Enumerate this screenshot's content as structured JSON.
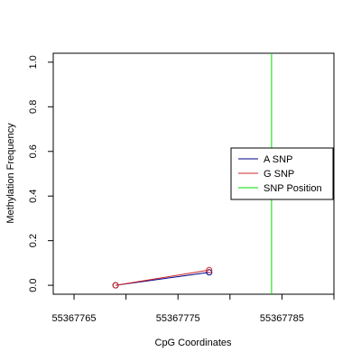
{
  "chart_data": {
    "type": "line",
    "title": "",
    "xlabel": "CpG Coordinates",
    "ylabel": "Methylation Frequency",
    "xlim": [
      55367763,
      55367790
    ],
    "ylim": [
      -0.04,
      1.04
    ],
    "x_ticks": [
      55367765,
      55367770,
      55367775,
      55367780,
      55367785,
      55367790
    ],
    "x_tick_labels": [
      "55367765",
      "",
      "55367775",
      "",
      "55367785",
      ""
    ],
    "y_ticks": [
      0.0,
      0.2,
      0.4,
      0.6,
      0.8,
      1.0
    ],
    "y_tick_labels": [
      "0.0",
      "0.2",
      "0.4",
      "0.6",
      "0.8",
      "1.0"
    ],
    "grid": false,
    "legend_position": "right",
    "series": [
      {
        "name": "A SNP",
        "color": "#00008b",
        "x": [
          55367769,
          55367778
        ],
        "y": [
          0.0,
          0.058
        ]
      },
      {
        "name": "G SNP",
        "color": "#cd2626",
        "x": [
          55367769,
          55367778
        ],
        "y": [
          0.0,
          0.068
        ]
      }
    ],
    "vline": {
      "name": "SNP Position",
      "color": "#00dd00",
      "x": 55367784
    },
    "legend": [
      {
        "label": "A SNP",
        "color": "#00008b"
      },
      {
        "label": "G SNP",
        "color": "#cd2626"
      },
      {
        "label": "SNP Position",
        "color": "#00dd00"
      }
    ]
  }
}
